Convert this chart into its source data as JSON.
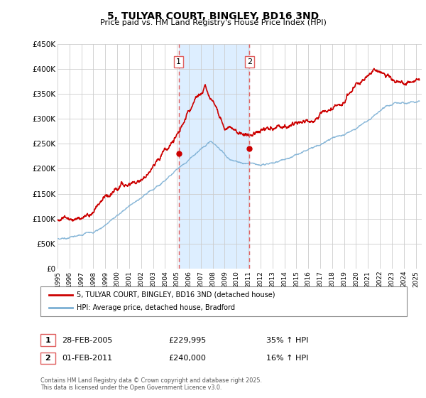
{
  "title": "5, TULYAR COURT, BINGLEY, BD16 3ND",
  "subtitle": "Price paid vs. HM Land Registry's House Price Index (HPI)",
  "legend_line1": "5, TULYAR COURT, BINGLEY, BD16 3ND (detached house)",
  "legend_line2": "HPI: Average price, detached house, Bradford",
  "footer": "Contains HM Land Registry data © Crown copyright and database right 2025.\nThis data is licensed under the Open Government Licence v3.0.",
  "transactions": [
    {
      "num": 1,
      "date": "28-FEB-2005",
      "price": "£229,995",
      "hpi": "35% ↑ HPI",
      "year": 2005.15,
      "price_val": 229995
    },
    {
      "num": 2,
      "date": "01-FEB-2011",
      "price": "£240,000",
      "hpi": "16% ↑ HPI",
      "year": 2011.08,
      "price_val": 240000
    }
  ],
  "xmin": 1995,
  "xmax": 2025.5,
  "ymin": 0,
  "ymax": 450000,
  "yticks": [
    0,
    50000,
    100000,
    150000,
    200000,
    250000,
    300000,
    350000,
    400000,
    450000
  ],
  "ytick_labels": [
    "£0",
    "£50K",
    "£100K",
    "£150K",
    "£200K",
    "£250K",
    "£300K",
    "£350K",
    "£400K",
    "£450K"
  ],
  "red_color": "#cc0000",
  "blue_color": "#7bafd4",
  "shade_color": "#ddeeff",
  "vline_color": "#e06060",
  "grid_color": "#cccccc"
}
